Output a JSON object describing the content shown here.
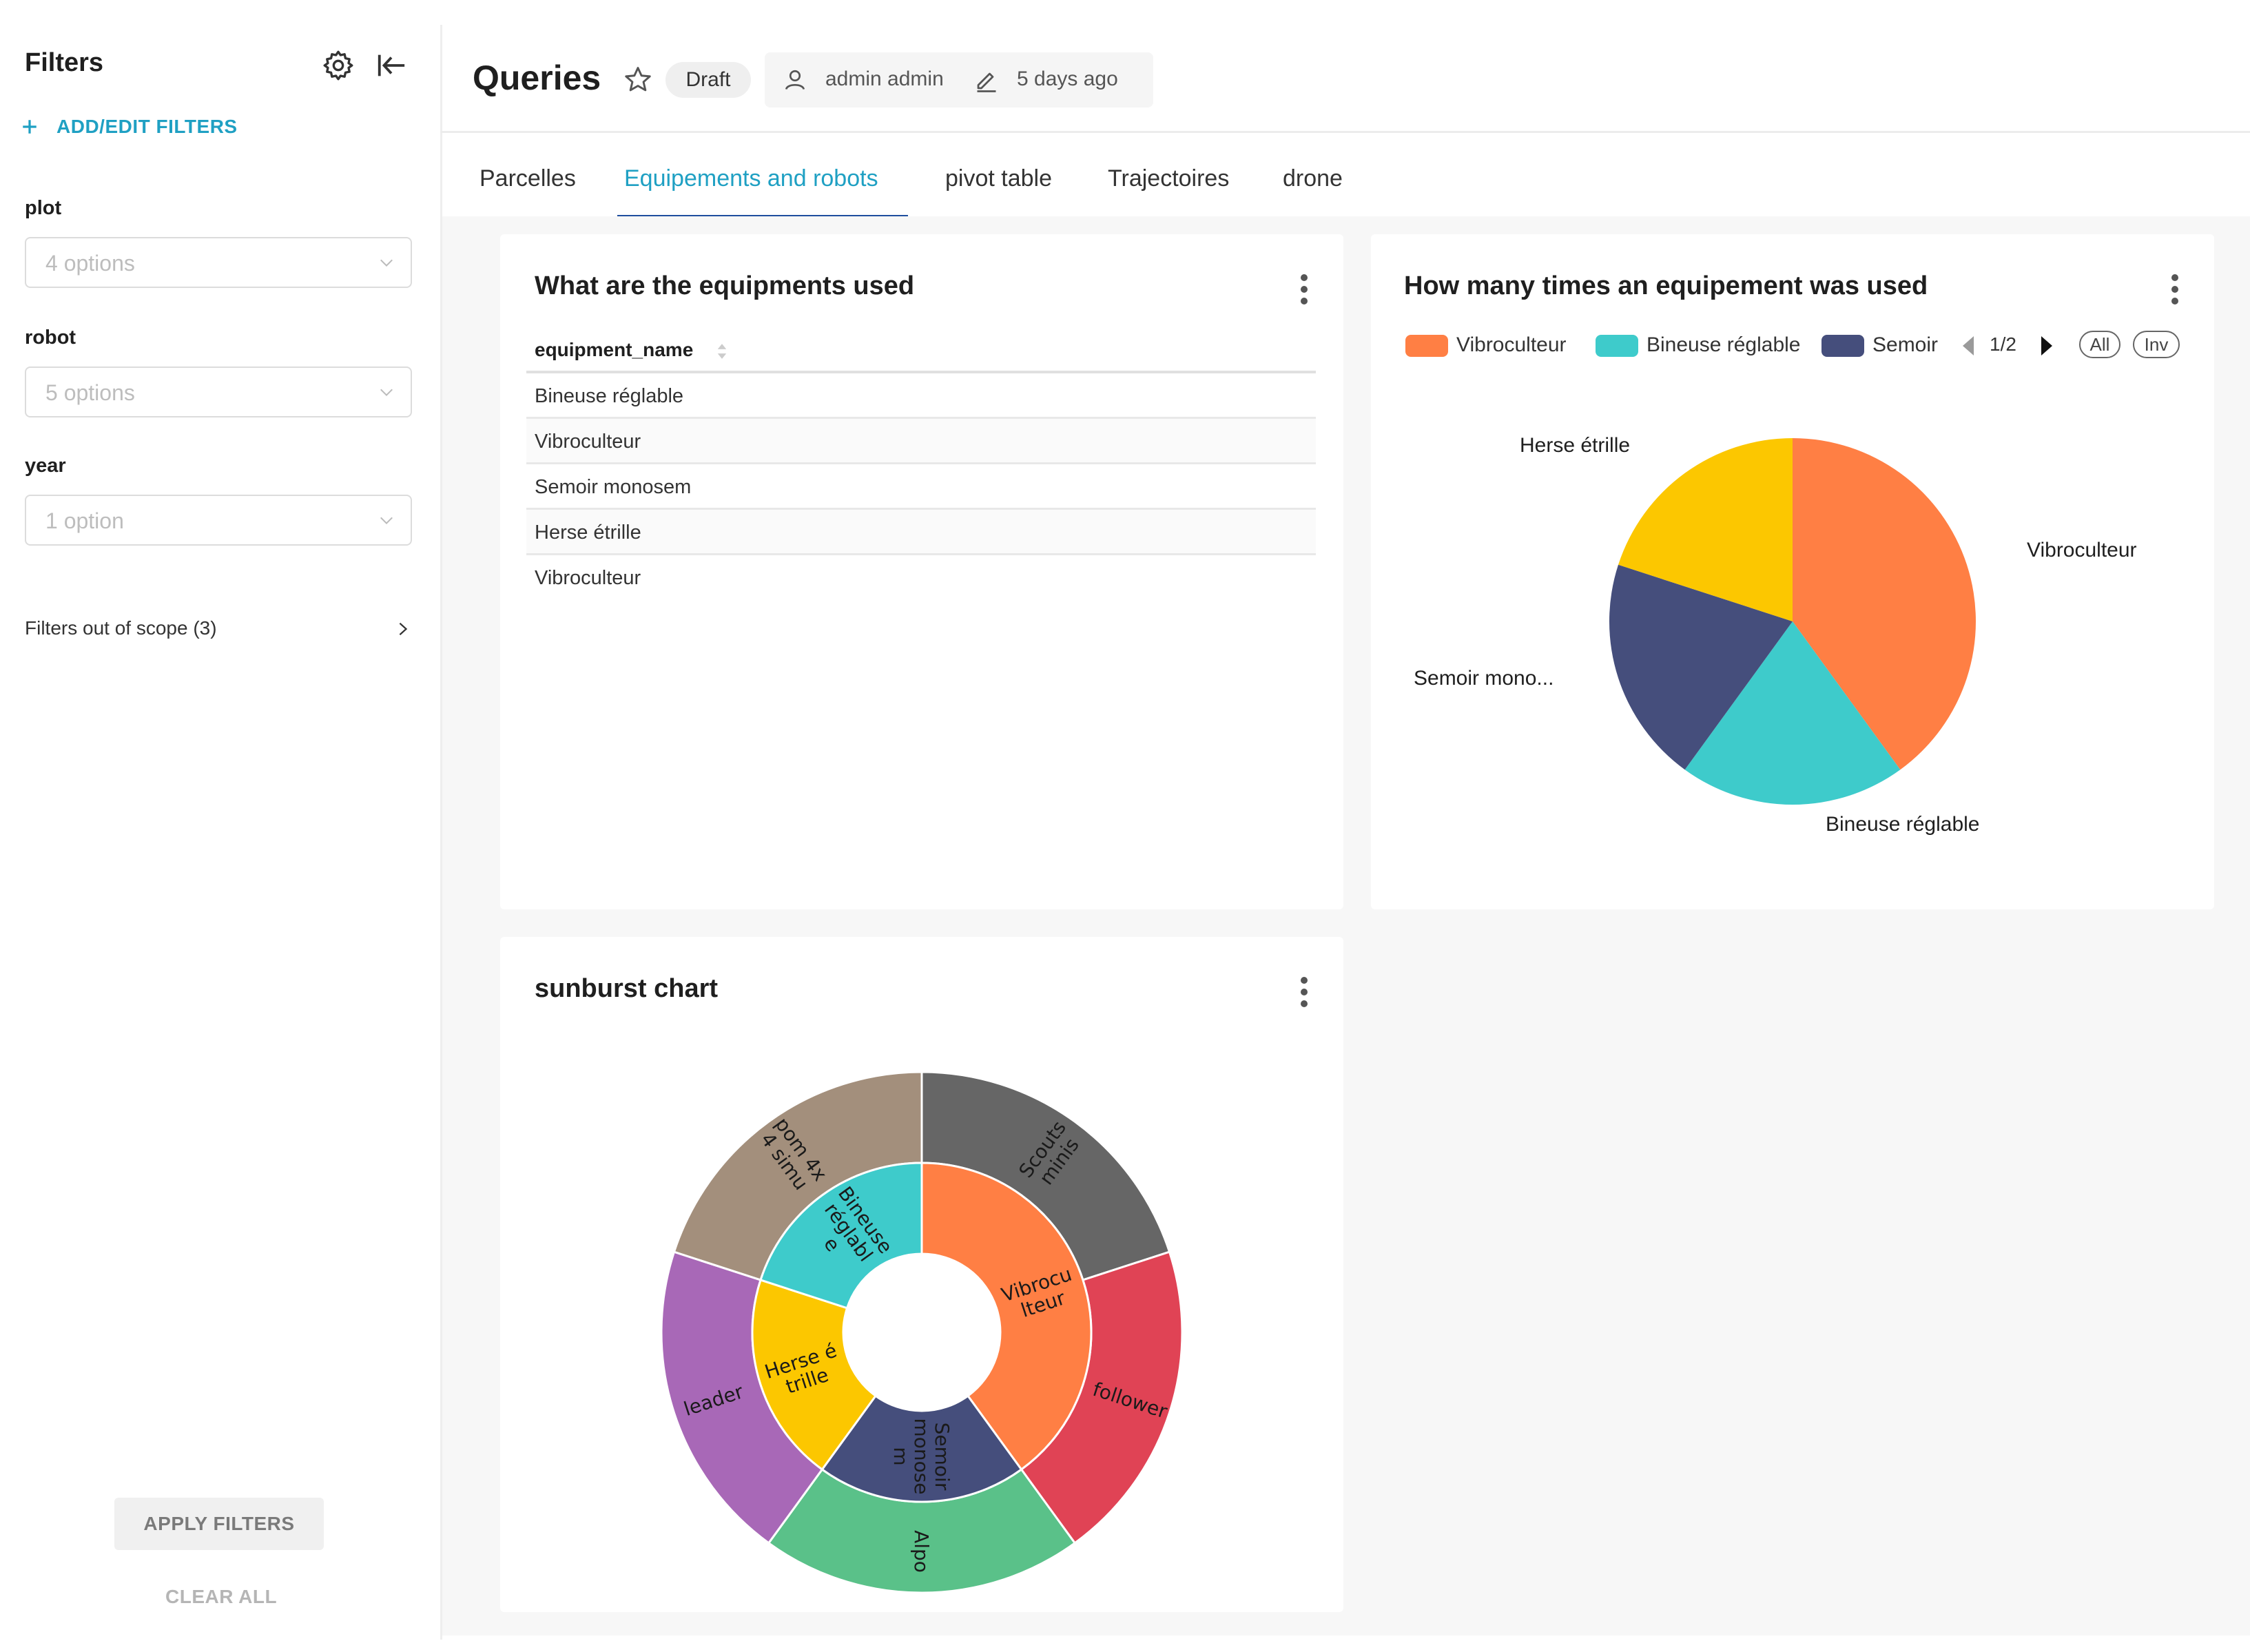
{
  "sidebar": {
    "title": "Filters",
    "add_filters_label": "ADD/EDIT FILTERS",
    "filters": [
      {
        "label": "plot",
        "placeholder": "4 options"
      },
      {
        "label": "robot",
        "placeholder": "5 options"
      },
      {
        "label": "year",
        "placeholder": "1 option"
      }
    ],
    "out_of_scope_label": "Filters out of scope (3)",
    "apply_label": "APPLY FILTERS",
    "clear_label": "CLEAR ALL",
    "icons": [
      "gear-icon",
      "collapse-left-icon",
      "plus-icon",
      "chevron-down-icon",
      "chevron-right-icon"
    ]
  },
  "header": {
    "title": "Queries",
    "badge": "Draft",
    "owner": "admin admin",
    "modified": "5 days ago",
    "icons": [
      "star-icon",
      "user-icon",
      "pencil-icon"
    ]
  },
  "tabs": [
    {
      "label": "Parcelles",
      "active": false
    },
    {
      "label": "Equipements and robots",
      "active": true
    },
    {
      "label": "pivot table",
      "active": false
    },
    {
      "label": "Trajectoires",
      "active": false
    },
    {
      "label": "drone",
      "active": false
    }
  ],
  "colors": {
    "accent": "#1fa0c3",
    "tab_underline": "#1f4e9e",
    "vibroculteur": "#ff7f44",
    "bineuse": "#3ecbcb",
    "semoir": "#454e7c",
    "herse": "#fcc700",
    "scouts": "#666666",
    "follower": "#e04355",
    "alpo": "#5ac189",
    "leader": "#a868b7",
    "pom": "#a38f7c"
  },
  "table_card": {
    "title": "What are the equipments used",
    "column": "equipment_name",
    "rows": [
      "Bineuse réglable",
      "Vibroculteur",
      "Semoir monosem",
      "Herse étrille",
      "Vibroculteur"
    ]
  },
  "pie_card": {
    "title": "How many times an equipement was used",
    "legend": [
      {
        "label": "Vibroculteur",
        "color": "#ff7f44"
      },
      {
        "label": "Bineuse réglable",
        "color": "#3ecbcb"
      },
      {
        "label": "Semoir",
        "color": "#454e7c"
      }
    ],
    "pager": "1/2",
    "all_label": "All",
    "inv_label": "Inv"
  },
  "sunburst_card": {
    "title": "sunburst chart"
  },
  "chart_data": [
    {
      "type": "pie",
      "title": "How many times an equipement was used",
      "categories": [
        "Vibroculteur",
        "Bineuse réglable",
        "Semoir mono...",
        "Herse étrille"
      ],
      "values": [
        2,
        1,
        1,
        1
      ],
      "legend": "top"
    },
    {
      "type": "sunburst",
      "title": "sunburst chart",
      "inner": [
        {
          "label": "Vibroculteur",
          "display": "Vibrocu\nlteur",
          "value": 2,
          "color": "#ff7f44"
        },
        {
          "label": "Semoir monosem",
          "display": "Semoir\nmonose\nm",
          "value": 1,
          "color": "#454e7c"
        },
        {
          "label": "Herse étrille",
          "display": "Herse é\ntrille",
          "value": 1,
          "color": "#fcc700"
        },
        {
          "label": "Bineuse réglable",
          "display": "Bineuse\nréglabl\ne",
          "value": 1,
          "color": "#3ecbcb"
        }
      ],
      "outer": [
        {
          "label": "Scouts minis",
          "display": "Scouts\nminis",
          "value": 1,
          "parent": "Vibroculteur",
          "color": "#666666"
        },
        {
          "label": "follower",
          "display": "follower",
          "value": 1,
          "parent": "Vibroculteur",
          "color": "#e04355"
        },
        {
          "label": "Alpo",
          "display": "Alpo",
          "value": 1,
          "parent": "Semoir monosem",
          "color": "#5ac189"
        },
        {
          "label": "leader",
          "display": "leader",
          "value": 1,
          "parent": "Herse étrille",
          "color": "#a868b7"
        },
        {
          "label": "pom 4x 4 simu",
          "display": "pom 4x\n4 simu",
          "value": 1,
          "parent": "Bineuse réglable",
          "color": "#a38f7c"
        }
      ]
    }
  ]
}
